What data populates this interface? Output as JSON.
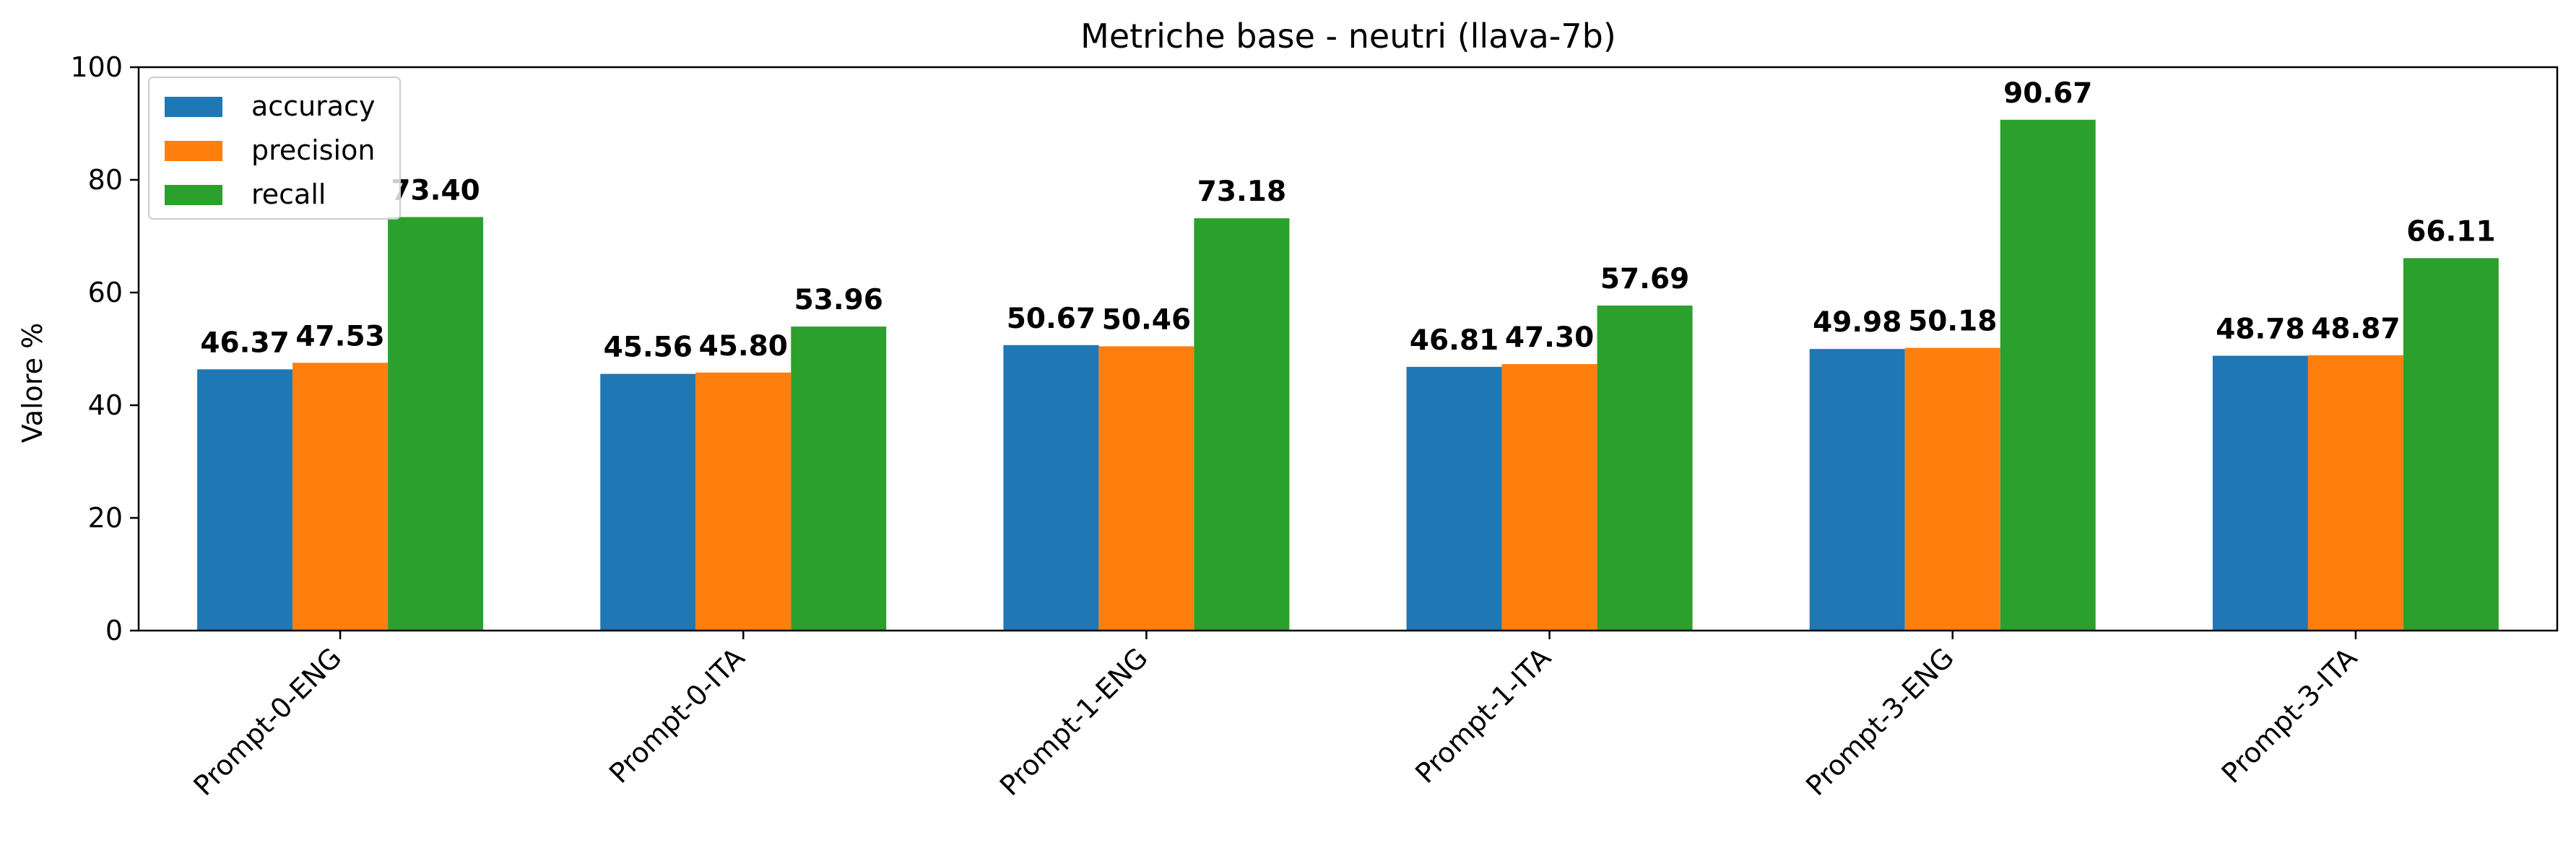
{
  "chart_data": {
    "type": "bar",
    "title": "Metriche base - neutri (llava-7b)",
    "xlabel": "",
    "ylabel": "Valore %",
    "ylim": [
      0,
      100
    ],
    "yticks": [
      0,
      20,
      40,
      60,
      80,
      100
    ],
    "grid": false,
    "legend_position": "top-left",
    "categories": [
      "Prompt-0-ENG",
      "Prompt-0-ITA",
      "Prompt-1-ENG",
      "Prompt-1-ITA",
      "Prompt-3-ENG",
      "Prompt-3-ITA"
    ],
    "series": [
      {
        "name": "accuracy",
        "color": "#1f77b4",
        "values": [
          46.37,
          45.56,
          50.67,
          46.81,
          49.98,
          48.78
        ],
        "labels": [
          "46.37",
          "45.56",
          "50.67",
          "46.81",
          "49.98",
          "48.78"
        ]
      },
      {
        "name": "precision",
        "color": "#ff7f0e",
        "values": [
          47.53,
          45.8,
          50.46,
          47.3,
          50.18,
          48.87
        ],
        "labels": [
          "47.53",
          "45.80",
          "50.46",
          "47.30",
          "50.18",
          "48.87"
        ]
      },
      {
        "name": "recall",
        "color": "#2ca02c",
        "values": [
          73.4,
          53.96,
          73.18,
          57.69,
          90.67,
          66.11
        ],
        "labels": [
          "73.40",
          "53.96",
          "73.18",
          "57.69",
          "90.67",
          "66.11"
        ]
      }
    ]
  }
}
